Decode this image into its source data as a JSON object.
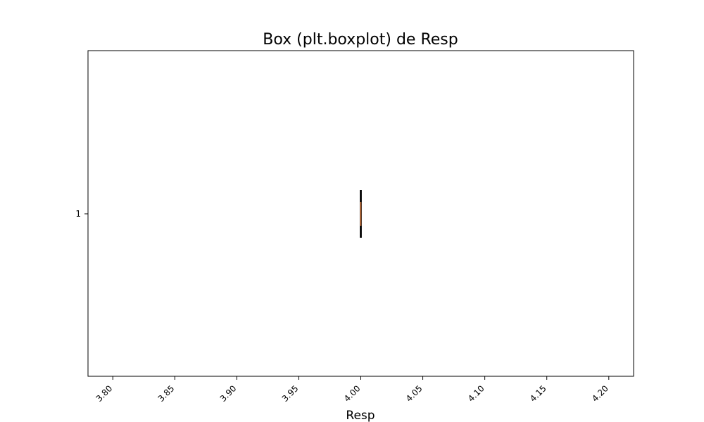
{
  "chart_data": {
    "type": "box",
    "orientation": "horizontal",
    "title": "Box (plt.boxplot) de Resp",
    "xlabel": "Resp",
    "ylabel": "",
    "xlim": [
      3.78,
      4.22
    ],
    "x_ticks": [
      "3.80",
      "3.85",
      "3.90",
      "3.95",
      "4.00",
      "4.05",
      "4.10",
      "4.15",
      "4.20"
    ],
    "x_tick_values": [
      3.8,
      3.85,
      3.9,
      3.95,
      4.0,
      4.05,
      4.1,
      4.15,
      4.2
    ],
    "y_ticks": [
      "1"
    ],
    "grid": false,
    "series": [
      {
        "category": "1",
        "min": 4.0,
        "q1": 4.0,
        "median": 4.0,
        "q3": 4.0,
        "max": 4.0
      }
    ],
    "colors": {
      "box": "#000000",
      "median": "#e07b39",
      "axes": "#000000"
    }
  }
}
